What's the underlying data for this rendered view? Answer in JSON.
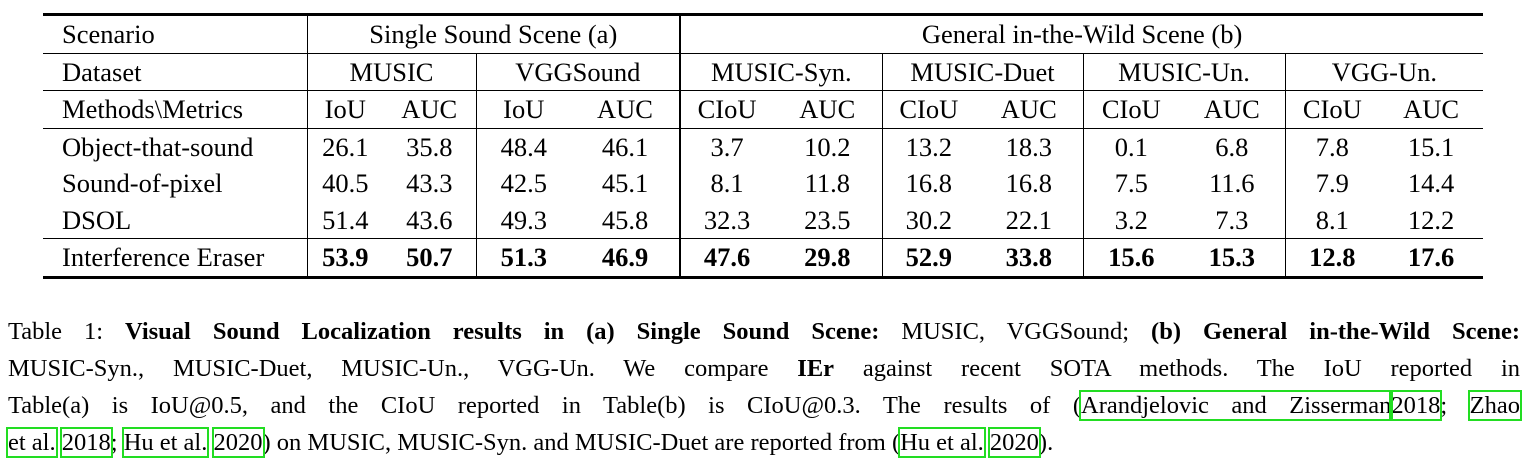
{
  "table": {
    "header": {
      "scenario_label": "Scenario",
      "group_a": "Single Sound Scene (a)",
      "group_b": "General in-the-Wild Scene (b)",
      "dataset_label": "Dataset",
      "datasets": [
        "MUSIC",
        "VGGSound",
        "MUSIC-Syn.",
        "MUSIC-Duet",
        "MUSIC-Un.",
        "VGG-Un."
      ],
      "methods_label": "Methods\\Metrics",
      "metrics": [
        "IoU",
        "AUC",
        "IoU",
        "AUC",
        "CIoU",
        "AUC",
        "CIoU",
        "AUC",
        "CIoU",
        "AUC",
        "CIoU",
        "AUC"
      ]
    },
    "rows": [
      {
        "method": "Object-that-sound",
        "values": [
          "26.1",
          "35.8",
          "48.4",
          "46.1",
          "3.7",
          "10.2",
          "13.2",
          "18.3",
          "0.1",
          "6.8",
          "7.8",
          "15.1"
        ]
      },
      {
        "method": "Sound-of-pixel",
        "values": [
          "40.5",
          "43.3",
          "42.5",
          "45.1",
          "8.1",
          "11.8",
          "16.8",
          "16.8",
          "7.5",
          "11.6",
          "7.9",
          "14.4"
        ]
      },
      {
        "method": "DSOL",
        "values": [
          "51.4",
          "43.6",
          "49.3",
          "45.8",
          "32.3",
          "23.5",
          "30.2",
          "22.1",
          "3.2",
          "7.3",
          "8.1",
          "12.2"
        ]
      },
      {
        "method": "Interference Eraser",
        "values": [
          "53.9",
          "50.7",
          "51.3",
          "46.9",
          "47.6",
          "29.8",
          "52.9",
          "33.8",
          "15.6",
          "15.3",
          "12.8",
          "17.6"
        ]
      }
    ]
  },
  "caption": {
    "lead": "Table 1: ",
    "title_part1": "Visual Sound Localization results in (a) Single Sound Scene:",
    "text1": " MUSIC, VGGSound; ",
    "title_part2": "(b) General in-the-Wild Scene:",
    "line2_a": "MUSIC-Syn., MUSIC-Duet, MUSIC-Un., VGG-Un. We compare ",
    "ier": "IEr",
    "line2_b": " against recent SOTA methods. The IoU reported in",
    "line3_a": "Table(a) is IoU@0.5, and the CIoU reported in Table(b) is CIoU@0.3. The results of (",
    "cite1": "Arandjelovic and Zisserman",
    "cite1_year": "2018",
    "sep1": "; ",
    "cite2_a": "Zhao",
    "cite2_b": "et al.",
    "cite2_year": "2018",
    "sep2": "; ",
    "cite3": "Hu et al.",
    "cite3_year": "2020",
    "line4_mid": ") on MUSIC, MUSIC-Syn. and MUSIC-Duet are reported from (",
    "cite4": "Hu et al.",
    "cite4_year": "2020",
    "end": ")."
  }
}
